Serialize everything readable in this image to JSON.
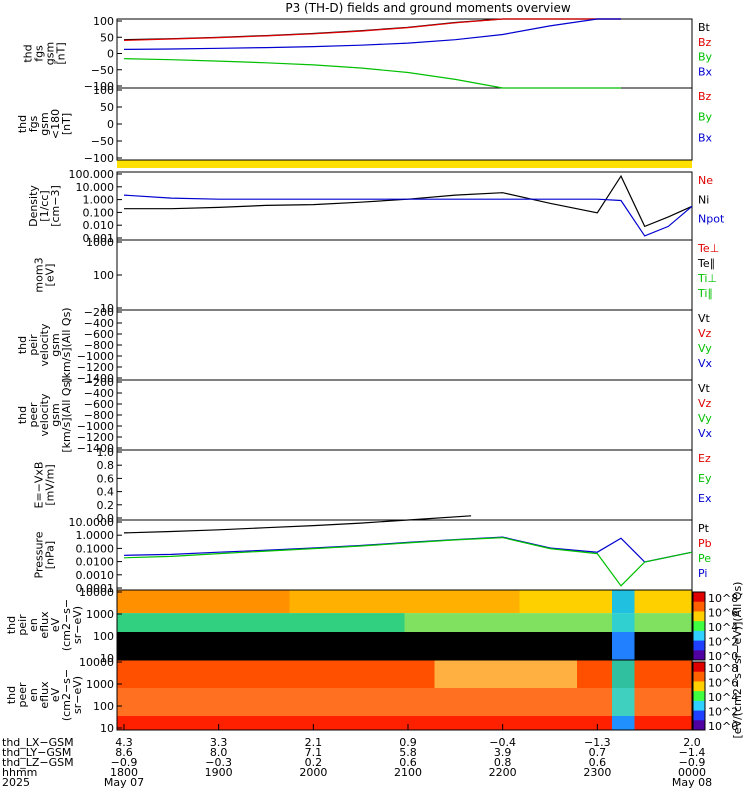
{
  "title": "P3 (TH-D) fields and ground moments overview",
  "colors": {
    "black": "#000000",
    "red": "#e00000",
    "green": "#00c000",
    "blue": "#0000d0",
    "yellow": "#ffe000"
  },
  "panels": [
    {
      "id": "fgs",
      "label": [
        "thd",
        "fgs",
        "gsm",
        "[nT]"
      ],
      "ticks": [
        "100",
        "50",
        "0",
        "−50",
        "−100"
      ],
      "legend": [
        {
          "text": "Bt",
          "color": "#000000"
        },
        {
          "text": "Bz",
          "color": "#e00000"
        },
        {
          "text": "By",
          "color": "#00c000"
        },
        {
          "text": "Bx",
          "color": "#0000d0"
        }
      ]
    },
    {
      "id": "fgs_red",
      "label": [
        "thd",
        "fgs",
        "gsm",
        "<180",
        "[nT]"
      ],
      "ticks": [
        "100",
        "50",
        "0",
        "−50",
        "−100"
      ],
      "legend": [
        {
          "text": "Bz",
          "color": "#e00000"
        },
        {
          "text": "By",
          "color": "#00c000"
        },
        {
          "text": "Bx",
          "color": "#0000d0"
        }
      ]
    },
    {
      "id": "density",
      "label": [
        "Density",
        "[1/cc]",
        "[cm−3]"
      ],
      "ticks": [
        "100.000",
        "10.000",
        "1.000",
        "0.100",
        "0.010",
        "0.001"
      ],
      "legend": [
        {
          "text": "Ne",
          "color": "#e00000"
        },
        {
          "text": "Ni",
          "color": "#000000"
        },
        {
          "text": "Npot",
          "color": "#0000d0"
        }
      ]
    },
    {
      "id": "temp",
      "label": [
        "mom3",
        "[eV]"
      ],
      "ticks": [
        "1000",
        "100",
        "10"
      ],
      "legend": [
        {
          "text": "Te⊥",
          "color": "#e00000"
        },
        {
          "text": "Te∥",
          "color": "#000000"
        },
        {
          "text": "Ti⊥",
          "color": "#00c000"
        },
        {
          "text": "Ti∥",
          "color": "#00c000"
        }
      ]
    },
    {
      "id": "vi",
      "label": [
        "thd",
        "peir",
        "velocity",
        "gsm",
        "[km/s](All Qs)"
      ],
      "ticks": [
        "−200",
        "−400",
        "−600",
        "−800",
        "−1000",
        "−1200",
        "−1400"
      ],
      "legend": [
        {
          "text": "Vt",
          "color": "#000000"
        },
        {
          "text": "Vz",
          "color": "#e00000"
        },
        {
          "text": "Vy",
          "color": "#00c000"
        },
        {
          "text": "Vx",
          "color": "#0000d0"
        }
      ]
    },
    {
      "id": "ve",
      "label": [
        "thd",
        "peer",
        "velocity",
        "gsm",
        "[km/s](All Qs)"
      ],
      "ticks": [
        "−200",
        "−400",
        "−600",
        "−800",
        "−1000",
        "−1200",
        "−1400"
      ],
      "legend": [
        {
          "text": "Vt",
          "color": "#000000"
        },
        {
          "text": "Vz",
          "color": "#e00000"
        },
        {
          "text": "Vy",
          "color": "#00c000"
        },
        {
          "text": "Vx",
          "color": "#0000d0"
        }
      ]
    },
    {
      "id": "efield",
      "label": [
        "E=−VxB",
        "[mV/m]"
      ],
      "ticks": [
        "1.0",
        "0.8",
        "0.6",
        "0.4",
        "0.2",
        "0.0"
      ],
      "legend": [
        {
          "text": "Ez",
          "color": "#e00000"
        },
        {
          "text": "Ey",
          "color": "#00c000"
        },
        {
          "text": "Ex",
          "color": "#0000d0"
        }
      ]
    },
    {
      "id": "pressure",
      "label": [
        "Pressure",
        "[nPa]"
      ],
      "ticks": [
        "10.0000",
        "1.0000",
        "0.1000",
        "0.0100",
        "0.0010",
        "0.0001"
      ],
      "legend": [
        {
          "text": "Pt",
          "color": "#000000"
        },
        {
          "text": "Pb",
          "color": "#e00000"
        },
        {
          "text": "Pe",
          "color": "#00c000"
        },
        {
          "text": "Pi",
          "color": "#0000d0"
        }
      ]
    },
    {
      "id": "ion_spec",
      "label": [
        "thd",
        "peir",
        "en",
        "eflux",
        "eV",
        "(cm2−s−",
        "sr−eV)"
      ],
      "ticks": [
        "10000",
        "1000",
        "100",
        "10"
      ]
    },
    {
      "id": "elec_spec",
      "label": [
        "thd",
        "peer",
        "en",
        "eflux",
        "eV",
        "(cm2−s−",
        "sr−eV)"
      ],
      "ticks": [
        "10000",
        "1000",
        "100",
        "10"
      ]
    }
  ],
  "colorbar": {
    "ticks": [
      "10^8",
      "10^6",
      "10^4",
      "10^2",
      "10^0"
    ],
    "ticks2": [
      "10^8",
      "10^6",
      "10^4",
      "10^2",
      "10^0"
    ],
    "label": "[eV/(cm2−s−sr−eV)](All Qs)"
  },
  "xaxis": {
    "rows": [
      {
        "name": "thd_LX−GSM",
        "values": [
          "4.3",
          "3.3",
          "2.1",
          "0.9",
          "−0.4",
          "−1.3",
          "2.0"
        ]
      },
      {
        "name": "thd_LY−GSM",
        "values": [
          "8.6",
          "8.0",
          "7.1",
          "5.8",
          "3.9",
          "0.7",
          "−1.4"
        ]
      },
      {
        "name": "thd_LZ−GSM",
        "values": [
          "−0.9",
          "−0.3",
          "0.2",
          "0.6",
          "0.8",
          "0.6",
          "−0.9"
        ]
      },
      {
        "name": "hhmm",
        "values": [
          "1800",
          "1900",
          "2000",
          "2100",
          "2200",
          "2300",
          "0000"
        ]
      },
      {
        "name": "2025",
        "values": [
          "May 07",
          "",
          "",
          "",
          "",
          "",
          "May 08"
        ]
      }
    ]
  },
  "chart_data": {
    "type": "line",
    "title": "P3 (TH-D) fields and ground moments overview",
    "x_time_hhmm": [
      "1800",
      "1900",
      "2000",
      "2100",
      "2200",
      "2300",
      "0000"
    ],
    "series": [
      {
        "name": "Bt",
        "panel": "fgs",
        "x": [
          1800,
          1830,
          1900,
          1930,
          2000,
          2030,
          2100,
          2130,
          2200,
          2230,
          2300,
          2315
        ],
        "values": [
          40,
          43,
          47,
          52,
          58,
          66,
          76,
          90,
          105,
          130,
          160,
          200
        ]
      },
      {
        "name": "Bz",
        "panel": "fgs",
        "x": [
          1800,
          1830,
          1900,
          1930,
          2000,
          2030,
          2100,
          2130,
          2200,
          2230,
          2300,
          2315
        ],
        "values": [
          38,
          42,
          46,
          51,
          57,
          65,
          75,
          89,
          104,
          128,
          158,
          190
        ]
      },
      {
        "name": "By",
        "panel": "fgs",
        "x": [
          1800,
          1830,
          1900,
          1930,
          2000,
          2030,
          2100,
          2130,
          2200,
          2230,
          2300,
          2315
        ],
        "values": [
          -15,
          -18,
          -22,
          -27,
          -33,
          -42,
          -55,
          -75,
          -100,
          -130,
          -160,
          -180
        ]
      },
      {
        "name": "Bx",
        "panel": "fgs",
        "x": [
          1800,
          1830,
          1900,
          1930,
          2000,
          2030,
          2100,
          2130,
          2200,
          2230,
          2300,
          2315
        ],
        "values": [
          12,
          13,
          15,
          17,
          20,
          24,
          30,
          40,
          55,
          80,
          120,
          160
        ]
      },
      {
        "name": "Ni",
        "panel": "density",
        "x": [
          1800,
          1830,
          1900,
          1930,
          2000,
          2030,
          2100,
          2130,
          2200,
          2230,
          2300,
          2315,
          2330,
          2345,
          2400
        ],
        "values": [
          0.2,
          0.2,
          0.25,
          0.35,
          0.4,
          0.6,
          1.0,
          2.0,
          3.0,
          0.5,
          0.1,
          50,
          0.01,
          0.05,
          0.3
        ]
      },
      {
        "name": "Npot",
        "panel": "density",
        "x": [
          1800,
          1830,
          1900,
          1930,
          2000,
          2030,
          2100,
          2130,
          2200,
          2230,
          2300,
          2315,
          2330,
          2345,
          2400
        ],
        "values": [
          2,
          1.2,
          1.0,
          1.0,
          1.0,
          1.0,
          1.0,
          1.0,
          1.0,
          1.0,
          1.0,
          0.8,
          0.002,
          0.01,
          0.3
        ]
      },
      {
        "name": "Pt",
        "panel": "pressure",
        "x": [
          1800,
          1830,
          1900,
          1930,
          2000,
          2030,
          2100,
          2140
        ],
        "values": [
          1.2,
          1.5,
          2.0,
          2.8,
          4.0,
          6.0,
          10.0,
          20.0
        ]
      },
      {
        "name": "Pi",
        "panel": "pressure",
        "x": [
          1800,
          1830,
          1900,
          1930,
          2000,
          2030,
          2100,
          2130,
          2200,
          2230,
          2300,
          2315,
          2330,
          2400
        ],
        "values": [
          0.03,
          0.035,
          0.05,
          0.07,
          0.1,
          0.15,
          0.25,
          0.4,
          0.6,
          0.1,
          0.05,
          0.5,
          0.01,
          0.05
        ]
      },
      {
        "name": "Pe",
        "panel": "pressure",
        "x": [
          1800,
          1830,
          1900,
          1930,
          2000,
          2030,
          2100,
          2130,
          2200,
          2230,
          2300,
          2315,
          2330,
          2400
        ],
        "values": [
          0.02,
          0.025,
          0.04,
          0.06,
          0.09,
          0.14,
          0.23,
          0.38,
          0.55,
          0.09,
          0.04,
          0.0002,
          0.01,
          0.05
        ]
      }
    ]
  }
}
